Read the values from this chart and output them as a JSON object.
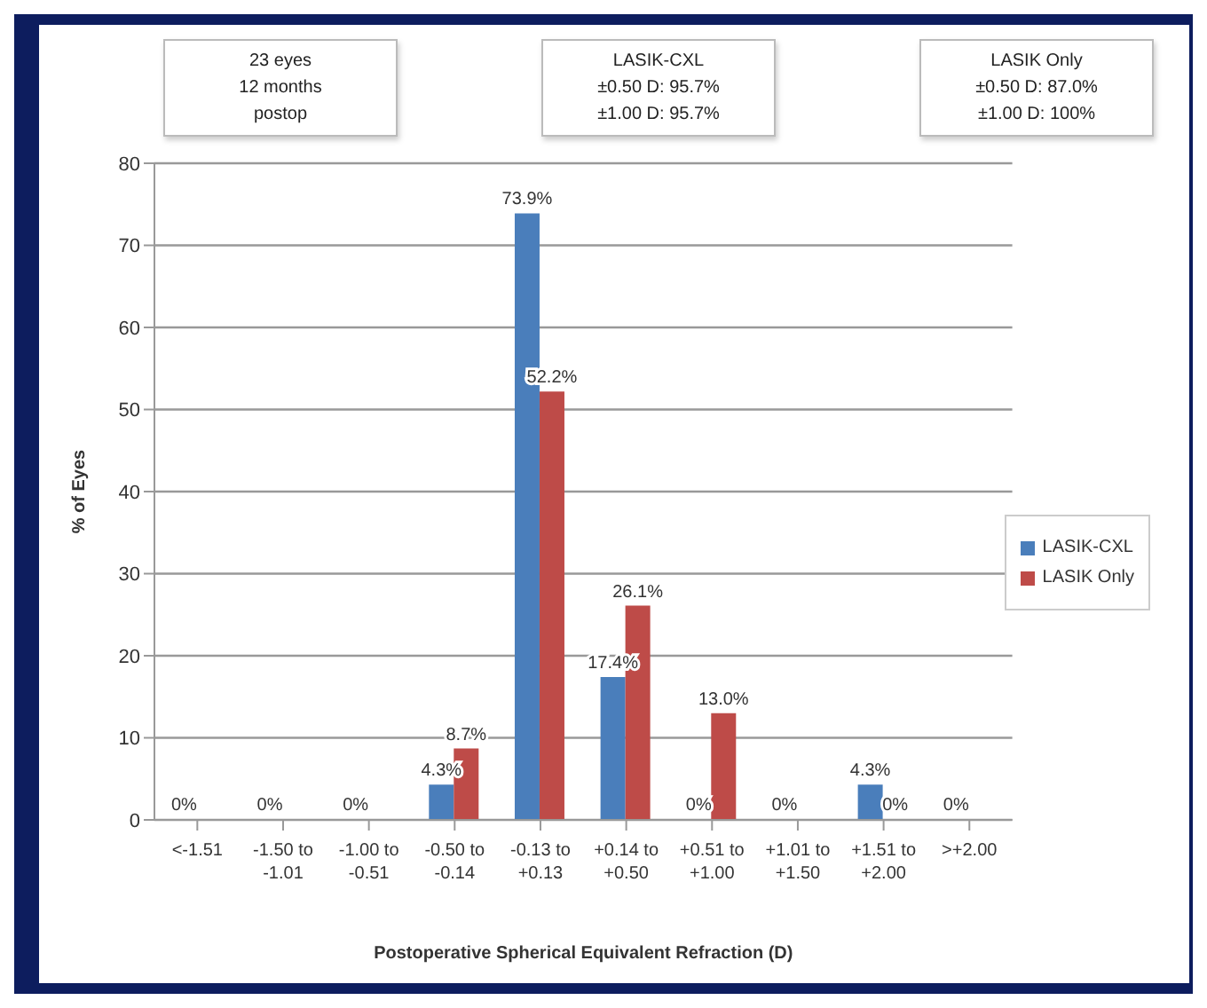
{
  "chart_data": {
    "type": "bar",
    "xlabel": "Postoperative Spherical Equivalent Refraction (D)",
    "ylabel": "% of Eyes",
    "annotations": [
      "23 eyes\n12 months\npostop",
      "LASIK-CXL\n±0.50 D: 95.7%\n±1.00 D: 95.7%",
      "LASIK Only\n±0.50 D: 87.0%\n±1.00 D: 100%"
    ],
    "categories": [
      "<-1.51",
      "-1.50 to -1.01",
      "-1.00 to -0.51",
      "-0.50 to -0.14",
      "-0.13 to +0.13",
      "+0.14 to +0.50",
      "+0.51 to +1.00",
      "+1.01 to +1.50",
      "+1.51 to +2.00",
      ">+2.00"
    ],
    "series": [
      {
        "name": "LASIK-CXL",
        "color": "#4a7ebb",
        "values": [
          0,
          0,
          0,
          4.3,
          73.9,
          17.4,
          0,
          0,
          4.3,
          0
        ],
        "value_labels": [
          "0%",
          "0%",
          "0%",
          "4.3%",
          "73.9%",
          "17.4%",
          "0%",
          "0%",
          "4.3%",
          "0%"
        ]
      },
      {
        "name": "LASIK Only",
        "color": "#be4b48",
        "values": [
          0,
          0,
          0,
          8.7,
          52.2,
          26.1,
          13.0,
          0,
          0,
          0
        ],
        "value_labels": [
          null,
          null,
          null,
          "8.7%",
          "52.2%",
          "26.1%",
          "13.0%",
          null,
          "0%",
          null
        ]
      }
    ],
    "ylim": [
      0,
      80
    ],
    "yticks": [
      0,
      10,
      20,
      30,
      40,
      50,
      60,
      70,
      80
    ],
    "grid": "y",
    "legend": "right"
  }
}
